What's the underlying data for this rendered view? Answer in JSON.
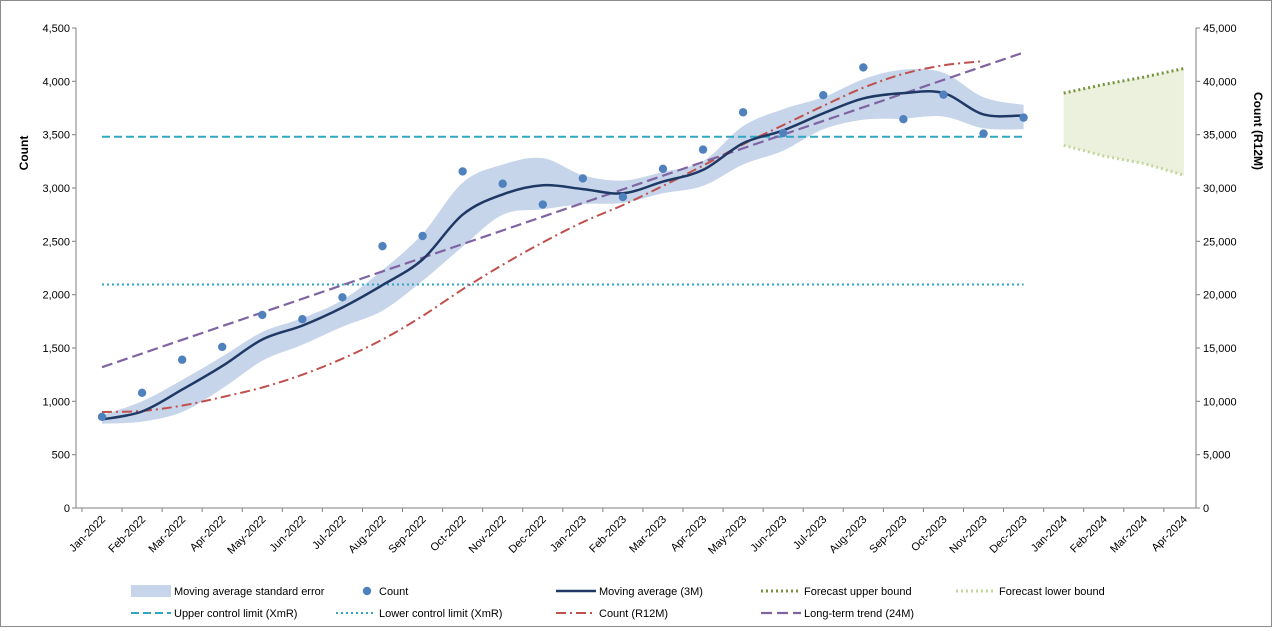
{
  "chart_data": {
    "type": "line",
    "title": "",
    "x": [
      "Jan-2022",
      "Feb-2022",
      "Mar-2022",
      "Apr-2022",
      "May-2022",
      "Jun-2022",
      "Jul-2022",
      "Aug-2022",
      "Sep-2022",
      "Oct-2022",
      "Nov-2022",
      "Dec-2022",
      "Jan-2023",
      "Feb-2023",
      "Mar-2023",
      "Apr-2023",
      "May-2023",
      "Jun-2023",
      "Jul-2023",
      "Aug-2023",
      "Sep-2023",
      "Oct-2023",
      "Nov-2023",
      "Dec-2023",
      "Jan-2024",
      "Feb-2024",
      "Mar-2024",
      "Apr-2024"
    ],
    "y_left": {
      "label": "Count",
      "ylim": [
        0,
        4500
      ],
      "ticks": [
        0,
        500,
        1000,
        1500,
        2000,
        2500,
        3000,
        3500,
        4000,
        4500
      ],
      "tick_labels": [
        "0",
        "500",
        "1,000",
        "1,500",
        "2,000",
        "2,500",
        "3,000",
        "3,500",
        "4,000",
        "4,500"
      ]
    },
    "y_right": {
      "label": "Count (R12M)",
      "ylim": [
        0,
        45000
      ],
      "ticks": [
        0,
        5000,
        10000,
        15000,
        20000,
        25000,
        30000,
        35000,
        40000,
        45000
      ],
      "tick_labels": [
        "0",
        "5,000",
        "10,000",
        "15,000",
        "20,000",
        "25,000",
        "30,000",
        "35,000",
        "40,000",
        "45,000"
      ]
    },
    "grid": false,
    "legend_position": "bottom",
    "series": {
      "moving_avg_se": {
        "name": "Moving average standard error",
        "color": "#c6d5ea",
        "upper": [
          870,
          1000,
          1200,
          1420,
          1650,
          1780,
          1950,
          2230,
          2570,
          3050,
          3220,
          3280,
          3120,
          3070,
          3150,
          3250,
          3580,
          3740,
          3850,
          4020,
          4110,
          4080,
          3850,
          3780
        ],
        "lower": [
          790,
          810,
          900,
          1120,
          1380,
          1530,
          1700,
          1850,
          2130,
          2450,
          2750,
          2800,
          2850,
          2860,
          2950,
          3020,
          3220,
          3350,
          3550,
          3640,
          3650,
          3670,
          3560,
          3550
        ]
      },
      "count": {
        "name": "Count",
        "color": "#4f81bd",
        "values": [
          855,
          1080,
          1390,
          1510,
          1810,
          1770,
          1975,
          2455,
          2550,
          3155,
          3040,
          2845,
          3090,
          2915,
          3180,
          3360,
          3710,
          3515,
          3870,
          4130,
          3645,
          3875,
          3510,
          3660
        ]
      },
      "moving_average": {
        "name": "Moving average (3M)",
        "color": "#1f3864",
        "values": [
          830,
          905,
          1110,
          1330,
          1580,
          1710,
          1880,
          2090,
          2330,
          2750,
          2940,
          3025,
          2990,
          2950,
          3060,
          3170,
          3420,
          3540,
          3700,
          3840,
          3890,
          3890,
          3690,
          3680
        ]
      },
      "forecast_upper": {
        "name": "Forecast upper bound",
        "color": "#76923c",
        "values": [
          3890,
          3970,
          4040,
          4120
        ]
      },
      "forecast_lower": {
        "name": "Forecast lower bound",
        "color": "#c3d69b",
        "values": [
          3400,
          3300,
          3230,
          3120
        ]
      },
      "ucl": {
        "name": "Upper control limit (XmR)",
        "color": "#31a7c2",
        "value": 3480
      },
      "lcl": {
        "name": "Lower control limit (XmR)",
        "color": "#31a7c2",
        "value": 2095
      },
      "r12m": {
        "name": "Count (R12M)",
        "color": "#c0504d",
        "axis": "right",
        "values": [
          9000,
          9100,
          9600,
          10400,
          11300,
          12500,
          14000,
          15800,
          18000,
          20500,
          22800,
          24900,
          26800,
          28400,
          30200,
          32100,
          34100,
          35900,
          37700,
          39400,
          40700,
          41500,
          41900,
          null
        ]
      },
      "trend": {
        "name": "Long-term trend (24M)",
        "color": "#8064a2",
        "start": 1320,
        "end": 4270
      }
    }
  }
}
